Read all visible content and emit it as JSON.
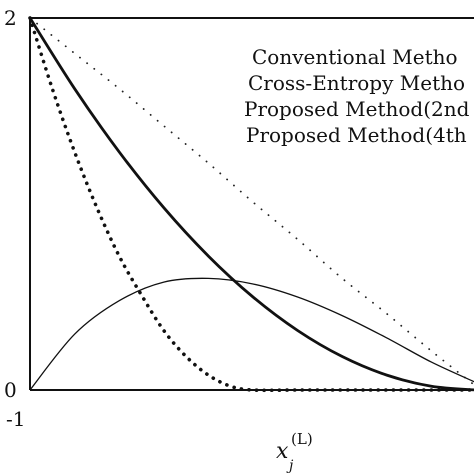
{
  "chart_data": {
    "type": "line",
    "title": "",
    "xlabel": {
      "main": "x",
      "subscript": "j",
      "superscript": "(L)"
    },
    "ylabel": "",
    "xlim": [
      -1,
      1
    ],
    "ylim": [
      0,
      2
    ],
    "x_ticks": [
      {
        "value": -1,
        "label": "-1"
      }
    ],
    "y_ticks": [
      {
        "value": 0,
        "label": "0"
      },
      {
        "value": 2,
        "label": "2"
      }
    ],
    "grid": false,
    "legend_position": "top-right",
    "series": [
      {
        "name": "Conventional Metho",
        "style": "sparse-dotted",
        "x": [
          -1,
          -0.8,
          -0.6,
          -0.4,
          -0.2,
          0,
          0.2,
          0.4,
          0.6,
          0.8,
          1
        ],
        "y": [
          2,
          1.81,
          1.62,
          1.42,
          1.22,
          1.01,
          0.81,
          0.6,
          0.41,
          0.21,
          0.02
        ]
      },
      {
        "name": "Cross-Entropy Metho",
        "style": "dense-dotted",
        "x": [
          -1,
          -0.9,
          -0.8,
          -0.7,
          -0.6,
          -0.5,
          -0.4,
          -0.3,
          -0.2,
          -0.1,
          0,
          0.2,
          0.4,
          0.6,
          0.8,
          1
        ],
        "y": [
          2,
          1.62,
          1.28,
          0.98,
          0.72,
          0.51,
          0.32,
          0.18,
          0.08,
          0.02,
          0,
          0,
          0,
          0,
          0,
          0
        ]
      },
      {
        "name": "Proposed Method(2nd",
        "style": "thick-solid",
        "x": [
          -1,
          -0.8,
          -0.6,
          -0.4,
          -0.2,
          0,
          0.2,
          0.4,
          0.6,
          0.8,
          1
        ],
        "y": [
          2,
          1.62,
          1.28,
          0.98,
          0.72,
          0.5,
          0.32,
          0.18,
          0.08,
          0.02,
          0
        ]
      },
      {
        "name": "Proposed Method(4th",
        "style": "thin-solid",
        "x": [
          -1,
          -0.8,
          -0.6,
          -0.4,
          -0.2,
          0,
          0.2,
          0.4,
          0.6,
          0.8,
          1
        ],
        "y": [
          0,
          0.3,
          0.48,
          0.58,
          0.6,
          0.57,
          0.5,
          0.4,
          0.28,
          0.15,
          0.04
        ]
      }
    ]
  }
}
